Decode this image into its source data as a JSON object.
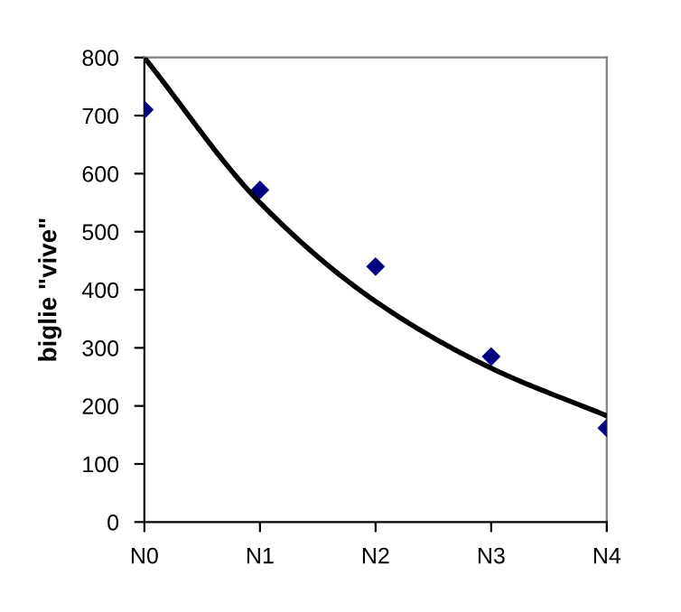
{
  "chart_data": {
    "type": "scatter",
    "ylabel": "biglie \"vive\"",
    "categories": [
      "N0",
      "N1",
      "N2",
      "N3",
      "N4"
    ],
    "series": [
      {
        "color": "#000080",
        "marker": "diamond",
        "values": [
          710,
          572,
          440,
          285,
          162
        ]
      },
      {
        "type": "line",
        "color": "#000000",
        "marker": "none",
        "line_style": "solid",
        "values": [
          800,
          550,
          380,
          265,
          183
        ]
      }
    ],
    "ylim": [
      0,
      800
    ],
    "yticks": [
      0,
      100,
      200,
      300,
      400,
      500,
      600,
      700,
      800
    ],
    "grid": false,
    "legend": false
  }
}
